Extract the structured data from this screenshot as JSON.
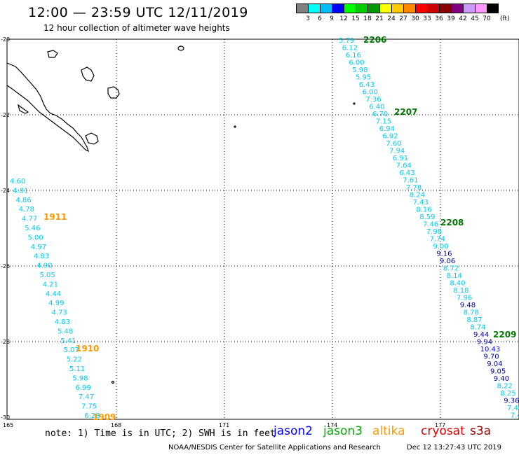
{
  "header": {
    "title": "12:00 — 23:59 UTC 12/11/2019",
    "subtitle": "12 hour collection of altimeter wave heights"
  },
  "legend": {
    "colors": [
      "#808080",
      "#00ffff",
      "#00bfff",
      "#0000ff",
      "#00ff00",
      "#00cc00",
      "#009900",
      "#ffff00",
      "#ffcc00",
      "#ff8800",
      "#ff0000",
      "#cc0000",
      "#880000",
      "#800080",
      "#cc99ff",
      "#ff99ff",
      "#000000"
    ],
    "labels": [
      "3",
      "6",
      "9",
      "12",
      "15",
      "18",
      "21",
      "24",
      "27",
      "30",
      "33",
      "36",
      "39",
      "42",
      "45",
      "70"
    ],
    "unit": "(ft)"
  },
  "axes": {
    "lat_labels": [
      "-20",
      "-22",
      "-24",
      "-26",
      "-28",
      "-30"
    ],
    "lon_labels": [
      "165",
      "168",
      "171",
      "174",
      "177"
    ]
  },
  "tracks": {
    "t1": {
      "color": "#00ccee",
      "values": [
        "4.60",
        "4.81",
        "4.86",
        "4.78",
        "4.77",
        "5.46",
        "5.00",
        "4.97",
        "4.83",
        "4.90",
        "5.05",
        "4.21",
        "4.44",
        "4.99",
        "4.73",
        "4.83",
        "5.48",
        "5.41",
        "5.07",
        "5.22",
        "5.11",
        "5.98",
        "6.99",
        "7.47",
        "7.75",
        "6.28"
      ],
      "times": [
        {
          "label": "1911",
          "color": "#ff9900"
        },
        {
          "label": "1910",
          "color": "#ff9900"
        },
        {
          "label": "1909",
          "color": "#ff9900"
        }
      ]
    },
    "t2": {
      "values": [
        {
          "v": "5.79",
          "c": "#00ccee"
        },
        {
          "v": "6.12",
          "c": "#00ccee"
        },
        {
          "v": "6.16",
          "c": "#00ccee"
        },
        {
          "v": "6.00",
          "c": "#00ccee"
        },
        {
          "v": "5.98",
          "c": "#00ccee"
        },
        {
          "v": "5.95",
          "c": "#00ccee"
        },
        {
          "v": "6.43",
          "c": "#00ccee"
        },
        {
          "v": "6.00",
          "c": "#00ccee"
        },
        {
          "v": "7.36",
          "c": "#00ccee"
        },
        {
          "v": "6.40",
          "c": "#00ccee"
        },
        {
          "v": "6.70",
          "c": "#00ccee"
        },
        {
          "v": "7.15",
          "c": "#00ccee"
        },
        {
          "v": "6.94",
          "c": "#00ccee"
        },
        {
          "v": "6.92",
          "c": "#00ccee"
        },
        {
          "v": "7.60",
          "c": "#00ccee"
        },
        {
          "v": "7.94",
          "c": "#00ccee"
        },
        {
          "v": "6.91",
          "c": "#00ccee"
        },
        {
          "v": "7.64",
          "c": "#00ccee"
        },
        {
          "v": "6.43",
          "c": "#00ccee"
        },
        {
          "v": "7.61",
          "c": "#00ccee"
        },
        {
          "v": "7.78",
          "c": "#00ccee"
        },
        {
          "v": "8.24",
          "c": "#00ccee"
        },
        {
          "v": "7.43",
          "c": "#00ccee"
        },
        {
          "v": "8.16",
          "c": "#00ccee"
        },
        {
          "v": "8.59",
          "c": "#00ccee"
        },
        {
          "v": "7.46",
          "c": "#00ccee"
        },
        {
          "v": "7.98",
          "c": "#00ccee"
        },
        {
          "v": "7.74",
          "c": "#00ccee"
        },
        {
          "v": "9.00",
          "c": "#00ccee"
        },
        {
          "v": "9.16",
          "c": "#000099"
        },
        {
          "v": "9.06",
          "c": "#000099"
        },
        {
          "v": "8.72",
          "c": "#00ccee"
        },
        {
          "v": "8.14",
          "c": "#00ccee"
        },
        {
          "v": "8.40",
          "c": "#00ccee"
        },
        {
          "v": "8.18",
          "c": "#00ccee"
        },
        {
          "v": "7.96",
          "c": "#00ccee"
        },
        {
          "v": "9.48",
          "c": "#000099"
        },
        {
          "v": "8.78",
          "c": "#00ccee"
        },
        {
          "v": "8.87",
          "c": "#00ccee"
        },
        {
          "v": "8.74",
          "c": "#00ccee"
        },
        {
          "v": "9.44",
          "c": "#000099"
        },
        {
          "v": "9.94",
          "c": "#000099"
        },
        {
          "v": "10.43",
          "c": "#0000ff"
        },
        {
          "v": "9.70",
          "c": "#000099"
        },
        {
          "v": "9.04",
          "c": "#000099"
        },
        {
          "v": "9.05",
          "c": "#000099"
        },
        {
          "v": "9.40",
          "c": "#000099"
        },
        {
          "v": "8.22",
          "c": "#00ccee"
        },
        {
          "v": "8.25",
          "c": "#00ccee"
        },
        {
          "v": "9.36",
          "c": "#000099"
        },
        {
          "v": "7.46",
          "c": "#00ccee"
        },
        {
          "v": "7.4",
          "c": "#00ccee"
        }
      ],
      "times": [
        {
          "label": "2206",
          "color": "#007700"
        },
        {
          "label": "2207",
          "color": "#007700"
        },
        {
          "label": "2208",
          "color": "#007700"
        },
        {
          "label": "2209",
          "color": "#007700"
        }
      ]
    }
  },
  "footer": {
    "note": "note: 1) Time is in UTC; 2) SWH is in feet",
    "satellites": [
      {
        "name": "jason2",
        "color": "#0000ff"
      },
      {
        "name": "jason3",
        "color": "#00aa00"
      },
      {
        "name": "altika",
        "color": "#ff9900"
      },
      {
        "name": "cryosat",
        "color": "#dd0000"
      },
      {
        "name": "s3a",
        "color": "#990000"
      }
    ],
    "credit": "NOAA/NESDIS Center for Satellite Applications and Research",
    "date": "Dec 12 13:27:43 UTC 2019"
  }
}
